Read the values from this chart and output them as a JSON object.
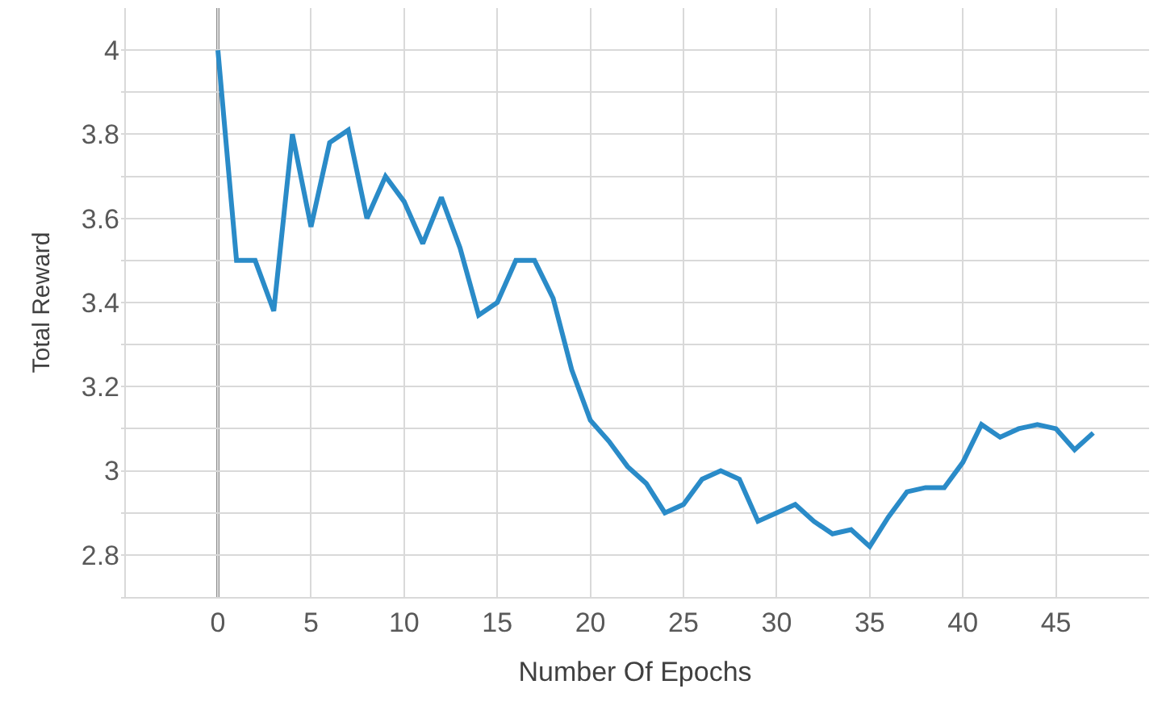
{
  "chart_data": {
    "type": "line",
    "xlabel": "Number Of Epochs",
    "ylabel": "Total Reward",
    "x": [
      0,
      1,
      2,
      3,
      4,
      5,
      6,
      7,
      8,
      9,
      10,
      11,
      12,
      13,
      14,
      15,
      16,
      17,
      18,
      19,
      20,
      21,
      22,
      23,
      24,
      25,
      26,
      27,
      28,
      29,
      30,
      31,
      32,
      33,
      34,
      35,
      36,
      37,
      38,
      39,
      40,
      41,
      42,
      43,
      44,
      45,
      46,
      47
    ],
    "series": [
      {
        "color": "#2a8bc8",
        "values": [
          4.0,
          3.5,
          3.5,
          3.38,
          3.8,
          3.58,
          3.78,
          3.81,
          3.6,
          3.7,
          3.64,
          3.54,
          3.65,
          3.53,
          3.37,
          3.4,
          3.5,
          3.5,
          3.41,
          3.24,
          3.12,
          3.07,
          3.01,
          2.97,
          2.9,
          2.92,
          2.98,
          3.0,
          2.98,
          2.88,
          2.9,
          2.92,
          2.88,
          2.85,
          2.86,
          2.82,
          2.89,
          2.95,
          2.96,
          2.96,
          3.02,
          3.11,
          3.08,
          3.1,
          3.11,
          3.1,
          3.05,
          3.09
        ]
      }
    ],
    "xlim": [
      -5.2,
      50
    ],
    "ylim": [
      2.7,
      4.1
    ],
    "xticks": [
      {
        "value": -5,
        "label": null
      },
      0,
      5,
      10,
      15,
      20,
      25,
      30,
      35,
      40,
      45
    ],
    "yticks": [
      2.8,
      {
        "value": 2.9,
        "label": null
      },
      3,
      {
        "value": 3.1,
        "label": null
      },
      3.2,
      {
        "value": 3.3,
        "label": null
      },
      3.4,
      {
        "value": 3.5,
        "label": null
      },
      3.6,
      {
        "value": 3.7,
        "label": null
      },
      3.8,
      {
        "value": 3.9,
        "label": null
      },
      4
    ],
    "ref_lines": [
      {
        "axis": "x",
        "value": 0,
        "label": null,
        "color": "#8c8c8c"
      }
    ],
    "grid": true,
    "marker": "none",
    "line_style": "solid"
  }
}
